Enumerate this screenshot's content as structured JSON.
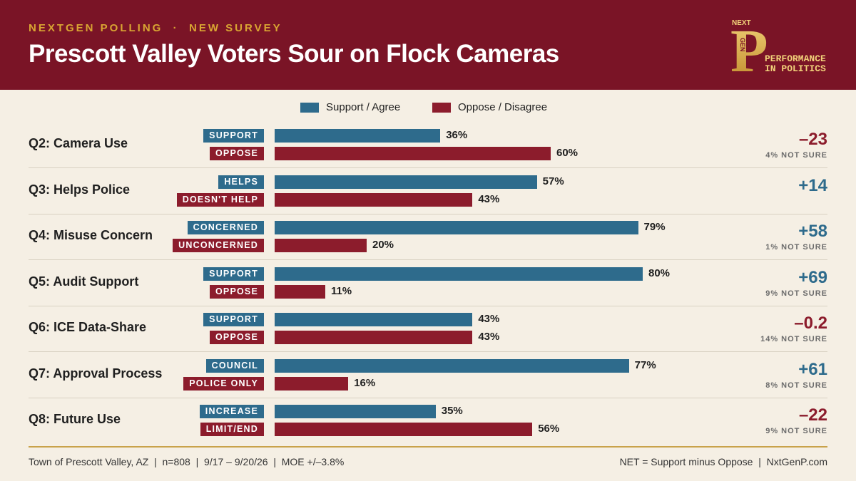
{
  "header": {
    "kicker": "NEXTGEN POLLING  ·  NEW SURVEY",
    "title": "Prescott Valley Voters Sour on Flock Cameras",
    "logo": {
      "mark": "P",
      "small_top": "NEXT",
      "small_side": "GEN",
      "line1": "PERFORMANCE",
      "line2": "IN POLITICS"
    }
  },
  "colors": {
    "support": "#2e6b8c",
    "oppose": "#8c1c2c",
    "header": "#7a1426",
    "gold": "#d9a532"
  },
  "chart_data": {
    "type": "bar",
    "orientation": "horizontal",
    "legend": [
      "Support / Agree",
      "Oppose / Disagree"
    ],
    "xlim": [
      0,
      100
    ],
    "questions": [
      {
        "label": "Q2: Camera Use",
        "support_label": "SUPPORT",
        "support": 36,
        "oppose_label": "OPPOSE",
        "oppose": 60,
        "net": "–23",
        "net_sign": "neg",
        "not_sure": "4% NOT SURE"
      },
      {
        "label": "Q3: Helps Police",
        "support_label": "HELPS",
        "support": 57,
        "oppose_label": "DOESN'T HELP",
        "oppose": 43,
        "net": "+14",
        "net_sign": "pos",
        "not_sure": ""
      },
      {
        "label": "Q4: Misuse Concern",
        "support_label": "CONCERNED",
        "support": 79,
        "oppose_label": "UNCONCERNED",
        "oppose": 20,
        "net": "+58",
        "net_sign": "pos",
        "not_sure": "1% NOT SURE"
      },
      {
        "label": "Q5: Audit Support",
        "support_label": "SUPPORT",
        "support": 80,
        "oppose_label": "OPPOSE",
        "oppose": 11,
        "net": "+69",
        "net_sign": "pos",
        "not_sure": "9% NOT SURE"
      },
      {
        "label": "Q6: ICE Data-Share",
        "support_label": "SUPPORT",
        "support": 43,
        "oppose_label": "OPPOSE",
        "oppose": 43,
        "net": "–0.2",
        "net_sign": "neg",
        "not_sure": "14% NOT SURE"
      },
      {
        "label": "Q7: Approval Process",
        "support_label": "COUNCIL",
        "support": 77,
        "oppose_label": "POLICE ONLY",
        "oppose": 16,
        "net": "+61",
        "net_sign": "pos",
        "not_sure": "8% NOT SURE"
      },
      {
        "label": "Q8: Future Use",
        "support_label": "INCREASE",
        "support": 35,
        "oppose_label": "LIMIT/END",
        "oppose": 56,
        "net": "–22",
        "net_sign": "neg",
        "not_sure": "9% NOT SURE"
      }
    ]
  },
  "footer": {
    "left": "Town of Prescott Valley, AZ  |  n=808  |  9/17 – 9/20/26  |  MOE +/–3.8%",
    "right": "NET = Support minus Oppose  |  NxtGenP.com"
  }
}
